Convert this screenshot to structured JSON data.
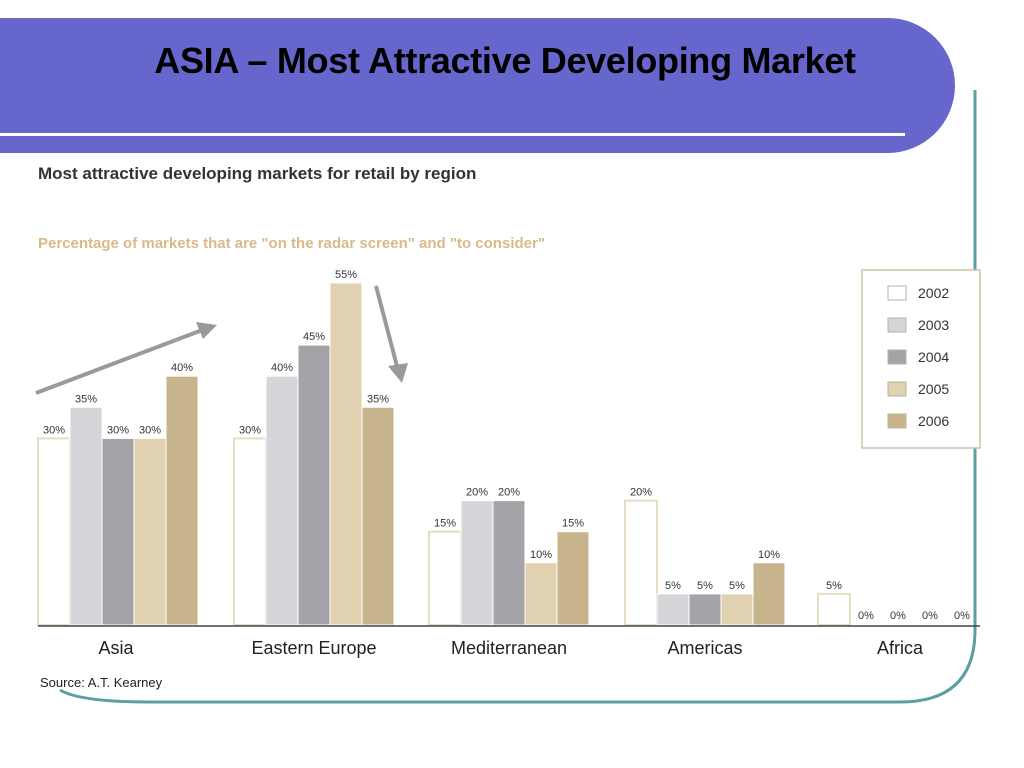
{
  "slide": {
    "title": "ASIA – Most Attractive Developing Market"
  },
  "colors": {
    "banner": "#6666cc",
    "frame_teal": "#5f9ea0",
    "arrow": "#999999"
  },
  "chart_data": {
    "type": "bar",
    "title": "Most attractive developing markets for retail by region",
    "subtitle": "Percentage of markets that are \"on the radar screen\" and \"to consider\"",
    "source": "Source: A.T. Kearney",
    "categories": [
      "Asia",
      "Eastern Europe",
      "Mediterranean",
      "Americas",
      "Africa"
    ],
    "series": [
      {
        "name": "2002",
        "color": "#ffffff",
        "values": [
          30,
          30,
          15,
          20,
          5
        ]
      },
      {
        "name": "2003",
        "color": "#d6d6da",
        "values": [
          35,
          40,
          20,
          5,
          0
        ]
      },
      {
        "name": "2004",
        "color": "#a4a4a8",
        "values": [
          30,
          45,
          20,
          5,
          0
        ]
      },
      {
        "name": "2005",
        "color": "#e0d2b0",
        "values": [
          30,
          55,
          10,
          5,
          0
        ]
      },
      {
        "name": "2006",
        "color": "#c8b48c",
        "values": [
          40,
          35,
          15,
          10,
          0
        ]
      }
    ],
    "value_labels": [
      [
        "30%",
        "35%",
        "30%",
        "30%",
        "40%"
      ],
      [
        "30%",
        "40%",
        "45%",
        "55%",
        "35%"
      ],
      [
        "15%",
        "20%",
        "20%",
        "10%",
        "15%"
      ],
      [
        "20%",
        "5%",
        "5%",
        "5%",
        "10%"
      ],
      [
        "5%",
        "0%",
        "0%",
        "0%",
        "0%"
      ]
    ],
    "ylim": [
      0,
      55
    ],
    "grid": false,
    "legend_position": "right"
  }
}
